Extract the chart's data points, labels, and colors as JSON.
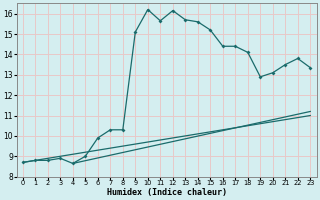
{
  "xlabel": "Humidex (Indice chaleur)",
  "bg_color": "#d4eef0",
  "grid_color": "#e8c8c8",
  "line_color": "#1a6b6b",
  "xlim": [
    -0.5,
    23.5
  ],
  "ylim": [
    8.0,
    16.5
  ],
  "xticks": [
    0,
    1,
    2,
    3,
    4,
    5,
    6,
    7,
    8,
    9,
    10,
    11,
    12,
    13,
    14,
    15,
    16,
    17,
    18,
    19,
    20,
    21,
    22,
    23
  ],
  "yticks": [
    8,
    9,
    10,
    11,
    12,
    13,
    14,
    15,
    16
  ],
  "main_x": [
    0,
    1,
    2,
    3,
    4,
    5,
    6,
    7,
    8,
    9,
    10,
    11,
    12,
    13,
    14,
    15,
    16,
    17,
    18,
    19,
    20,
    21,
    22,
    23
  ],
  "main_y": [
    8.7,
    8.8,
    8.8,
    8.9,
    8.65,
    9.0,
    9.9,
    10.3,
    10.3,
    15.1,
    16.2,
    15.65,
    16.15,
    15.7,
    15.6,
    15.2,
    14.4,
    14.4,
    14.1,
    12.9,
    13.1,
    13.5,
    13.8,
    13.35
  ],
  "line2_x": [
    0,
    23
  ],
  "line2_y": [
    8.7,
    11.0
  ],
  "line3_x": [
    4,
    23
  ],
  "line3_y": [
    8.65,
    11.2
  ]
}
